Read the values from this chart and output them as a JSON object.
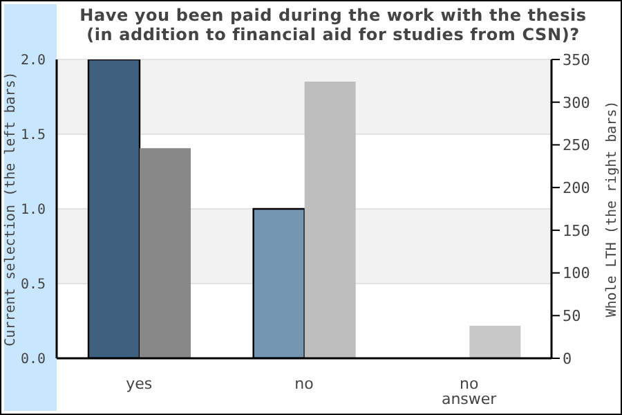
{
  "chart_data": {
    "type": "bar",
    "title": "Have you been paid during the work with the thesis\n(in addition to financial aid for studies from CSN)?",
    "categories": [
      "yes",
      "no",
      "no answer"
    ],
    "series": [
      {
        "values": [
          2,
          1,
          0
        ],
        "colors": [
          "#3f6180",
          "#7496b2",
          "#7496b2"
        ]
      },
      {
        "values": [
          246,
          324,
          38
        ],
        "colors": [
          "#888888",
          "#bebebe",
          "#c8c8c8"
        ],
        "axis": "y2"
      }
    ],
    "ylabel": "Current selection (the left bars)",
    "y2label": "Whole LTH (the right bars)",
    "ylim": [
      0,
      2
    ],
    "yticks": [
      {
        "value": 0,
        "label": "0.0"
      },
      {
        "value": 0.5,
        "label": "0.5"
      },
      {
        "value": 1,
        "label": "1.0"
      },
      {
        "value": 1.5,
        "label": "1.5"
      },
      {
        "value": 2,
        "label": "2.0"
      }
    ],
    "y2lim": [
      0,
      350
    ],
    "y2ticks": [
      0,
      50,
      100,
      150,
      200,
      250,
      300,
      350
    ],
    "grid": "y"
  }
}
